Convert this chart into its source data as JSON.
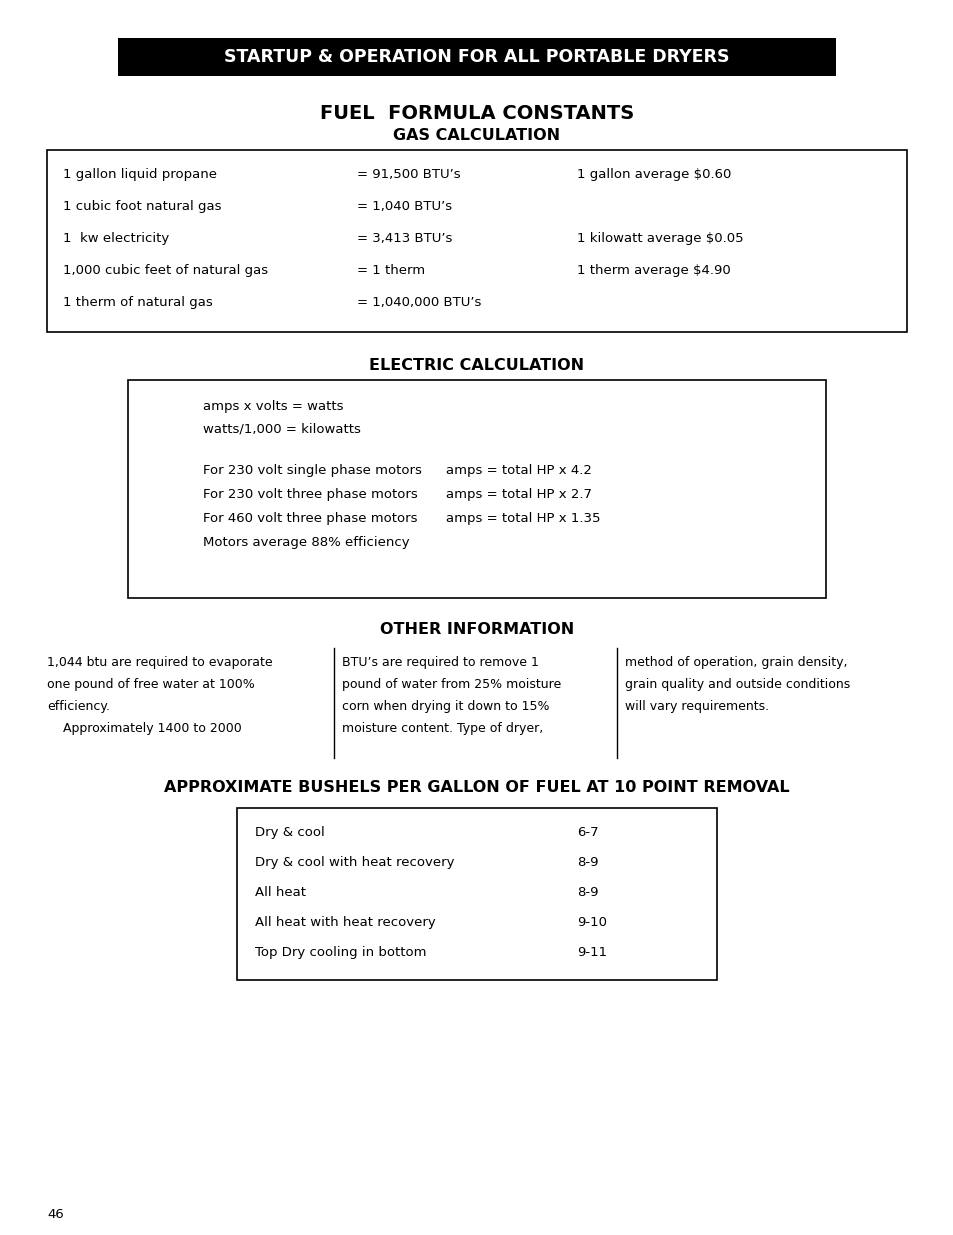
{
  "page_bg": "#ffffff",
  "header_bg": "#000000",
  "header_text": "STARTUP & OPERATION FOR ALL PORTABLE DRYERS",
  "header_text_color": "#ffffff",
  "title1": "FUEL  FORMULA CONSTANTS",
  "title2": "GAS CALCULATION",
  "gas_rows": [
    [
      "1 gallon liquid propane",
      "= 91,500 BTU’s",
      "1 gallon average $0.60"
    ],
    [
      "1 cubic foot natural gas",
      "= 1,040 BTU’s",
      ""
    ],
    [
      "1  kw electricity",
      "= 3,413 BTU’s",
      "1 kilowatt average $0.05"
    ],
    [
      "1,000 cubic feet of natural gas",
      "= 1 therm",
      "1 therm average $4.90"
    ],
    [
      "1 therm of natural gas",
      "= 1,040,000 BTU’s",
      ""
    ]
  ],
  "title3": "ELECTRIC CALCULATION",
  "elec_box_lines1": [
    "amps x volts = watts",
    "watts/1,000 = kilowatts"
  ],
  "elec_box_lines2": [
    [
      "For 230 volt single phase motors",
      "amps = total HP x 4.2"
    ],
    [
      "For 230 volt three phase motors",
      "amps = total HP x 2.7"
    ],
    [
      "For 460 volt three phase motors",
      "amps = total HP x 1.35"
    ],
    [
      "Motors average 88% efficiency",
      ""
    ]
  ],
  "title4": "OTHER INFORMATION",
  "other_col1": [
    "1,044 btu are required to evaporate",
    "one pound of free water at 100%",
    "efficiency.",
    "    Approximately 1400 to 2000"
  ],
  "other_col2": [
    "BTU’s are required to remove 1",
    "pound of water from 25% moisture",
    "corn when drying it down to 15%",
    "moisture content. Type of dryer,"
  ],
  "other_col3": [
    "method of operation, grain density,",
    "grain quality and outside conditions",
    "will vary requirements.",
    ""
  ],
  "title5": "APPROXIMATE BUSHELS PER GALLON OF FUEL AT 10 POINT REMOVAL",
  "bushel_rows": [
    [
      "Dry & cool",
      "6-7"
    ],
    [
      "Dry & cool with heat recovery",
      "8-9"
    ],
    [
      "All heat",
      "8-9"
    ],
    [
      "All heat with heat recovery",
      "9-10"
    ],
    [
      "Top Dry cooling in bottom",
      "9-11"
    ]
  ],
  "page_number": "46"
}
